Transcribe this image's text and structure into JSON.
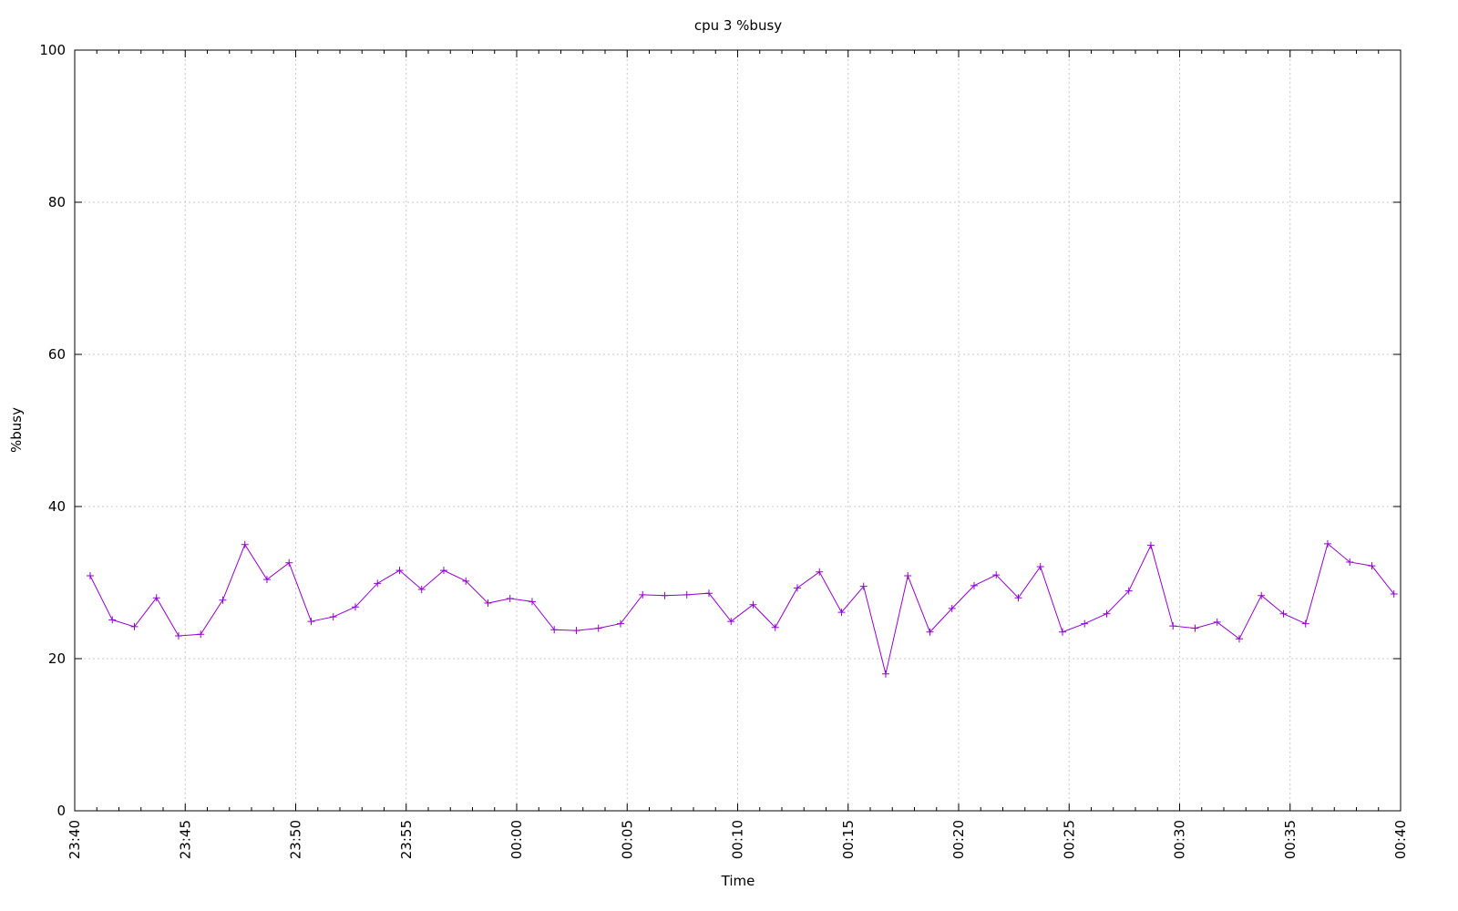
{
  "chart_data": {
    "type": "line",
    "title": "cpu 3 %busy",
    "xlabel": "Time",
    "ylabel": "%busy",
    "x": [
      0.7,
      1.7,
      2.7,
      3.7,
      4.7,
      5.7,
      6.7,
      7.7,
      8.7,
      9.7,
      10.7,
      11.7,
      12.7,
      13.7,
      14.7,
      15.7,
      16.7,
      17.7,
      18.7,
      19.7,
      20.7,
      21.7,
      22.7,
      23.7,
      24.7,
      25.7,
      26.7,
      27.7,
      28.7,
      29.7,
      30.7,
      31.7,
      32.7,
      33.7,
      34.7,
      35.7,
      36.7,
      37.7,
      38.7,
      39.7,
      40.7,
      41.7,
      42.7,
      43.7,
      44.7,
      45.7,
      46.7,
      47.7,
      48.7,
      49.7,
      50.7,
      51.7,
      52.7,
      53.7,
      54.7,
      55.7,
      56.7,
      57.7,
      58.7,
      59.7
    ],
    "series": [
      {
        "color": "#9400d3",
        "marker": "+",
        "values": [
          30.9,
          25.1,
          24.2,
          28.0,
          23.0,
          23.2,
          27.7,
          35.0,
          30.4,
          32.6,
          24.9,
          25.5,
          26.8,
          29.9,
          31.6,
          29.1,
          31.6,
          30.2,
          27.3,
          27.9,
          27.5,
          23.8,
          23.7,
          24.0,
          24.6,
          28.4,
          28.3,
          28.4,
          28.6,
          24.9,
          27.1,
          24.1,
          29.3,
          31.4,
          26.1,
          29.5,
          18.0,
          30.9,
          23.5,
          26.6,
          29.6,
          31.0,
          28.0,
          32.1,
          23.5,
          24.6,
          25.9,
          28.9,
          34.9,
          24.3,
          24.0,
          24.8,
          22.6,
          28.3,
          25.9,
          24.6,
          35.1,
          32.7,
          32.2,
          28.5
        ]
      }
    ],
    "xlim": [
      0,
      60
    ],
    "xticks": [
      {
        "value": 0,
        "label": "23:40"
      },
      {
        "value": 5,
        "label": "23:45"
      },
      {
        "value": 10,
        "label": "23:50"
      },
      {
        "value": 15,
        "label": "23:55"
      },
      {
        "value": 20,
        "label": "00:00"
      },
      {
        "value": 25,
        "label": "00:05"
      },
      {
        "value": 30,
        "label": "00:10"
      },
      {
        "value": 35,
        "label": "00:15"
      },
      {
        "value": 40,
        "label": "00:20"
      },
      {
        "value": 45,
        "label": "00:25"
      },
      {
        "value": 50,
        "label": "00:30"
      },
      {
        "value": 55,
        "label": "00:35"
      },
      {
        "value": 60,
        "label": "00:40"
      }
    ],
    "ylim": [
      0,
      100
    ],
    "yticks": [
      0,
      20,
      40,
      60,
      80,
      100
    ],
    "grid": true
  }
}
